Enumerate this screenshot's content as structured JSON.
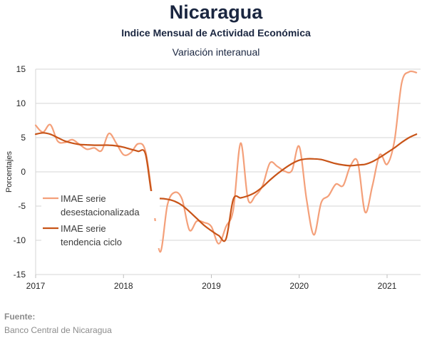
{
  "header": {
    "title": "Nicaragua",
    "subtitle": "Indice Mensual de  Actividad Económica",
    "subtitle2": "Variación interanual"
  },
  "footer": {
    "label": "Fuente:",
    "source": "Banco Central de Nicaragua"
  },
  "chart_data": {
    "type": "line",
    "ylabel": "Porcentajes",
    "xlabel": "",
    "ylim": [
      -15,
      15
    ],
    "yticks": [
      15,
      10,
      5,
      0,
      -5,
      -10,
      -15
    ],
    "xlim": [
      "2017-01",
      "2021-06"
    ],
    "xticks": [
      "2017",
      "2018",
      "2019",
      "2020",
      "2021"
    ],
    "grid": "horizontal",
    "legend_position": "lower-left",
    "series": [
      {
        "name": "IMAE serie desestacionalizada",
        "legend_lines": [
          "IMAE serie",
          "desestacionalizada"
        ],
        "color": "#f4a07a",
        "points": [
          [
            "2017-01",
            6.8
          ],
          [
            "2017-02",
            5.8
          ],
          [
            "2017-03",
            6.9
          ],
          [
            "2017-04",
            4.5
          ],
          [
            "2017-05",
            4.3
          ],
          [
            "2017-06",
            4.7
          ],
          [
            "2017-07",
            4.0
          ],
          [
            "2017-08",
            3.3
          ],
          [
            "2017-09",
            3.5
          ],
          [
            "2017-10",
            3.1
          ],
          [
            "2017-11",
            5.6
          ],
          [
            "2017-12",
            4.2
          ],
          [
            "2018-01",
            2.5
          ],
          [
            "2018-02",
            2.8
          ],
          [
            "2018-03",
            4.1
          ],
          [
            "2018-04",
            3.0
          ],
          [
            "2018-05",
            -4.2
          ],
          [
            "2018-06",
            -11.7
          ],
          [
            "2018-07",
            -4.8
          ],
          [
            "2018-08",
            -3.0
          ],
          [
            "2018-09",
            -4.0
          ],
          [
            "2018-10",
            -8.5
          ],
          [
            "2018-11",
            -7.2
          ],
          [
            "2018-12",
            -7.4
          ],
          [
            "2019-01",
            -8.0
          ],
          [
            "2019-02",
            -10.5
          ],
          [
            "2019-03",
            -8.0
          ],
          [
            "2019-04",
            -5.5
          ],
          [
            "2019-05",
            4.2
          ],
          [
            "2019-06",
            -4.0
          ],
          [
            "2019-07",
            -3.5
          ],
          [
            "2019-08",
            -2.0
          ],
          [
            "2019-09",
            1.3
          ],
          [
            "2019-10",
            0.8
          ],
          [
            "2019-11",
            0.1
          ],
          [
            "2019-12",
            0.2
          ],
          [
            "2020-01",
            3.7
          ],
          [
            "2020-02",
            -4.0
          ],
          [
            "2020-03",
            -9.2
          ],
          [
            "2020-04",
            -4.5
          ],
          [
            "2020-05",
            -3.5
          ],
          [
            "2020-06",
            -1.8
          ],
          [
            "2020-07",
            -2.0
          ],
          [
            "2020-08",
            0.9
          ],
          [
            "2020-09",
            1.4
          ],
          [
            "2020-10",
            -5.9
          ],
          [
            "2020-11",
            -2.0
          ],
          [
            "2020-12",
            2.5
          ],
          [
            "2021-01",
            1.1
          ],
          [
            "2021-02",
            4.5
          ],
          [
            "2021-03",
            13.0
          ],
          [
            "2021-04",
            14.6
          ],
          [
            "2021-05",
            14.5
          ]
        ]
      },
      {
        "name": "IMAE serie tendencia ciclo",
        "legend_lines": [
          "IMAE serie",
          "tendencia ciclo"
        ],
        "color": "#c85418",
        "points": [
          [
            "2017-01",
            5.5
          ],
          [
            "2017-02",
            5.7
          ],
          [
            "2017-03",
            5.5
          ],
          [
            "2017-04",
            5.0
          ],
          [
            "2017-05",
            4.5
          ],
          [
            "2017-06",
            4.2
          ],
          [
            "2017-07",
            4.0
          ],
          [
            "2017-08",
            3.95
          ],
          [
            "2017-09",
            3.9
          ],
          [
            "2017-10",
            3.9
          ],
          [
            "2017-11",
            3.9
          ],
          [
            "2017-12",
            3.8
          ],
          [
            "2018-01",
            3.6
          ],
          [
            "2018-02",
            3.3
          ],
          [
            "2018-03",
            3.0
          ],
          [
            "2018-04",
            2.6
          ],
          [
            "2018-05",
            -4.0
          ],
          [
            "2018-06",
            -3.9
          ],
          [
            "2018-07",
            -4.0
          ],
          [
            "2018-08",
            -4.3
          ],
          [
            "2018-09",
            -4.9
          ],
          [
            "2018-10",
            -5.8
          ],
          [
            "2018-11",
            -6.8
          ],
          [
            "2018-12",
            -7.8
          ],
          [
            "2019-01",
            -8.6
          ],
          [
            "2019-02",
            -9.3
          ],
          [
            "2019-03",
            -9.8
          ],
          [
            "2019-04",
            -4.0
          ],
          [
            "2019-05",
            -3.8
          ],
          [
            "2019-06",
            -3.5
          ],
          [
            "2019-07",
            -3.0
          ],
          [
            "2019-08",
            -2.2
          ],
          [
            "2019-09",
            -1.2
          ],
          [
            "2019-10",
            -0.3
          ],
          [
            "2019-11",
            0.5
          ],
          [
            "2019-12",
            1.2
          ],
          [
            "2020-01",
            1.7
          ],
          [
            "2020-02",
            1.9
          ],
          [
            "2020-03",
            1.9
          ],
          [
            "2020-04",
            1.8
          ],
          [
            "2020-05",
            1.5
          ],
          [
            "2020-06",
            1.2
          ],
          [
            "2020-07",
            1.0
          ],
          [
            "2020-08",
            0.9
          ],
          [
            "2020-09",
            1.0
          ],
          [
            "2020-10",
            1.1
          ],
          [
            "2020-11",
            1.5
          ],
          [
            "2020-12",
            2.1
          ],
          [
            "2021-01",
            2.8
          ],
          [
            "2021-02",
            3.5
          ],
          [
            "2021-03",
            4.3
          ],
          [
            "2021-04",
            5.0
          ],
          [
            "2021-05",
            5.5
          ]
        ]
      }
    ]
  }
}
